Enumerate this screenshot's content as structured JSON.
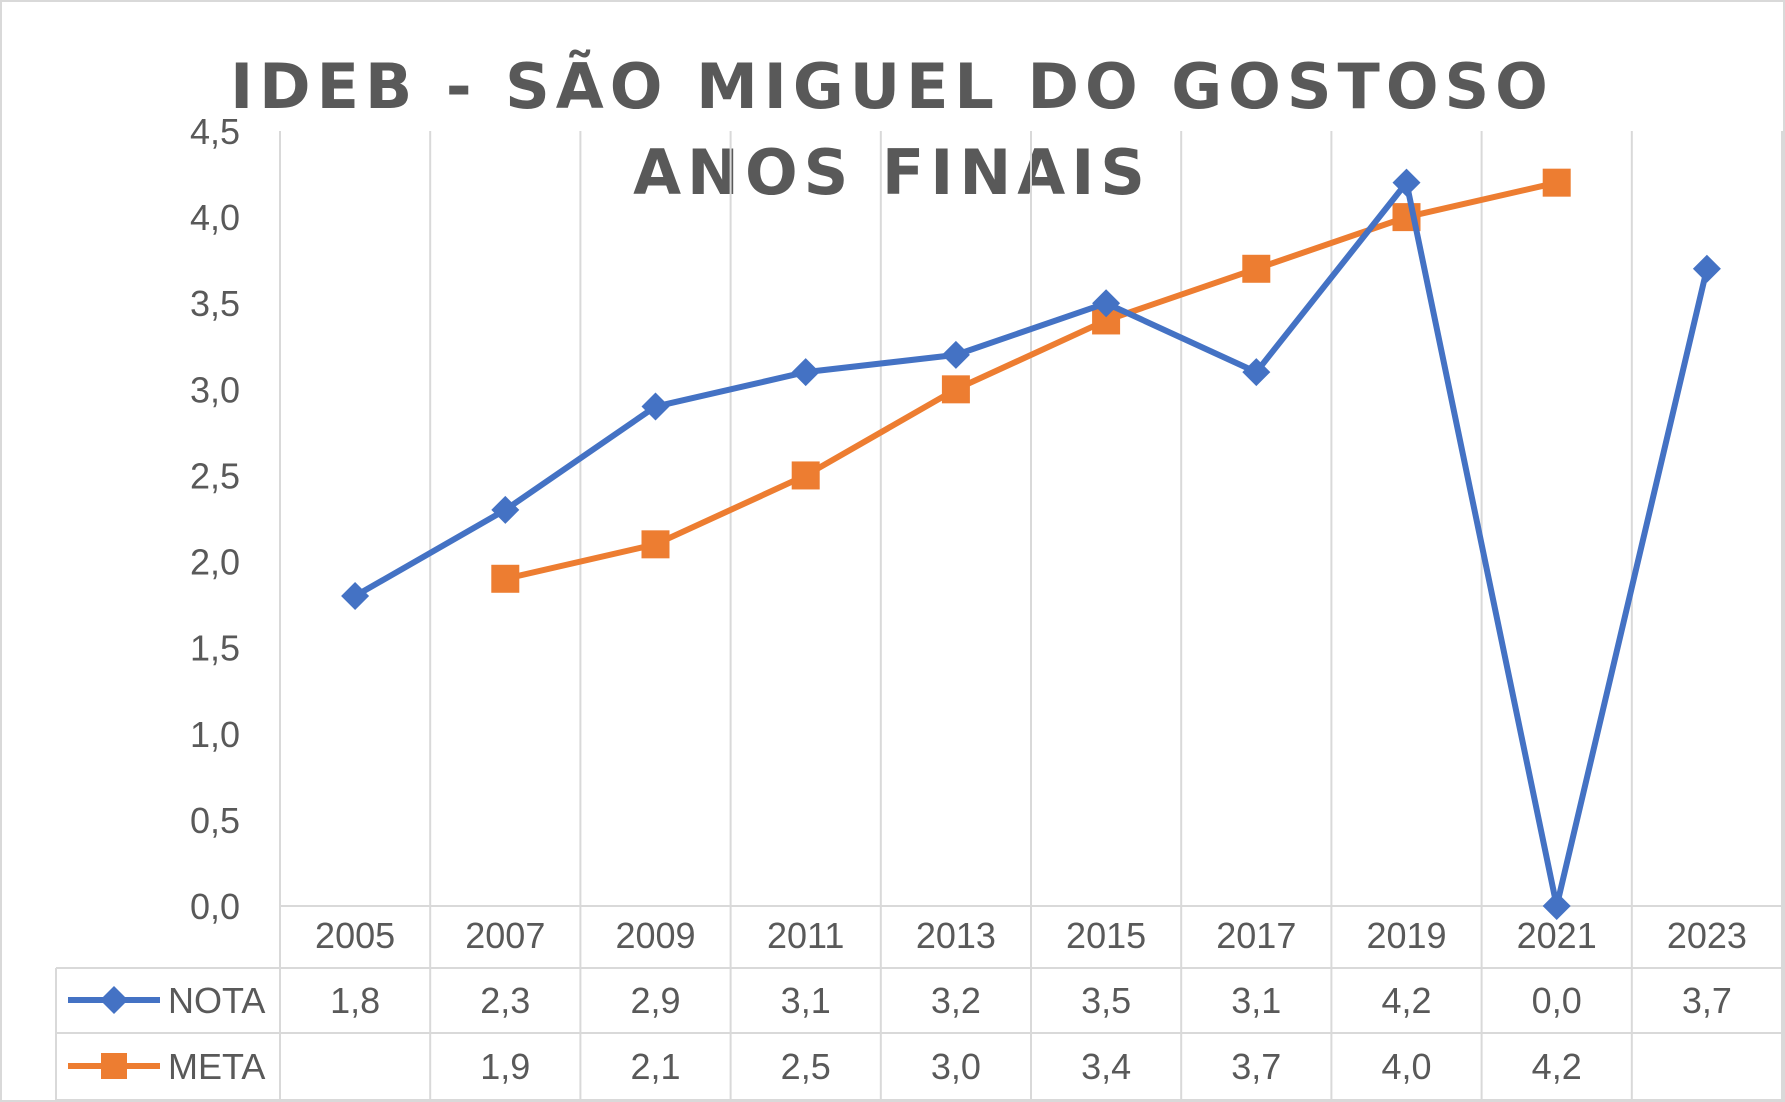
{
  "chart_data": {
    "type": "line",
    "title": "IDEB - SÃO MIGUEL DO GOSTOSO",
    "subtitle": "ANOS FINAIS",
    "categories": [
      "2005",
      "2007",
      "2009",
      "2011",
      "2013",
      "2015",
      "2017",
      "2019",
      "2021",
      "2023"
    ],
    "y_ticks": [
      "0,0",
      "0,5",
      "1,0",
      "1,5",
      "2,0",
      "2,5",
      "3,0",
      "3,5",
      "4,0",
      "4,5"
    ],
    "ylim": [
      0,
      4.5
    ],
    "grid": "vertical category lines",
    "legend": "data table below chart",
    "series": [
      {
        "name": "NOTA",
        "color": "#4472c4",
        "marker": "diamond",
        "values": [
          1.8,
          2.3,
          2.9,
          3.1,
          3.2,
          3.5,
          3.1,
          4.2,
          0.0,
          3.7
        ],
        "labels": [
          "1,8",
          "2,3",
          "2,9",
          "3,1",
          "3,2",
          "3,5",
          "3,1",
          "4,2",
          "0,0",
          "3,7"
        ]
      },
      {
        "name": "META",
        "color": "#ed7d31",
        "marker": "square",
        "values": [
          null,
          1.9,
          2.1,
          2.5,
          3.0,
          3.4,
          3.7,
          4.0,
          4.2,
          null
        ],
        "labels": [
          "",
          "1,9",
          "2,1",
          "2,5",
          "3,0",
          "3,4",
          "3,7",
          "4,0",
          "4,2",
          ""
        ]
      }
    ]
  }
}
